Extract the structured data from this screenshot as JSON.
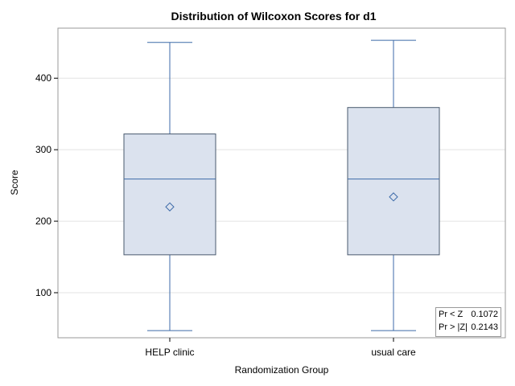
{
  "chart_data": {
    "type": "box",
    "title": "Distribution of Wilcoxon Scores for d1",
    "xlabel": "Randomization Group",
    "ylabel": "Score",
    "ylim": [
      37,
      470
    ],
    "yticks": [
      100,
      200,
      300,
      400
    ],
    "grid": true,
    "categories": [
      "HELP clinic",
      "usual care"
    ],
    "boxes": [
      {
        "category": "HELP clinic",
        "min": 47,
        "q1": 153,
        "median": 259,
        "q3": 322,
        "max": 450,
        "mean": 220
      },
      {
        "category": "usual care",
        "min": 47,
        "q1": 153,
        "median": 259,
        "q3": 359,
        "max": 453,
        "mean": 234
      }
    ],
    "inset_stats": [
      {
        "label": "Pr < Z",
        "value": "0.1072"
      },
      {
        "label": "Pr > |Z|",
        "value": "0.2143"
      }
    ]
  },
  "colors": {
    "box_fill": "#dbe2ee",
    "box_stroke": "#4a5a6e",
    "line": "#3c6aa8",
    "grid": "#e3e3e3",
    "frame": "#999999"
  }
}
